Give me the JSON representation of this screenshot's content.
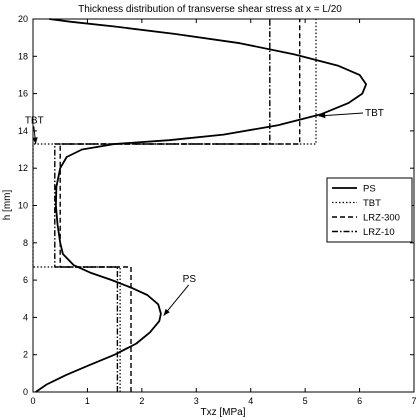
{
  "chart_data": {
    "type": "line",
    "title": "Thickness distribution of transverse shear stress at x = L/20",
    "xlabel": "Txz [MPa]",
    "ylabel": "h [mm]",
    "xlim": [
      0,
      7
    ],
    "ylim": [
      0,
      20
    ],
    "xticks": [
      0,
      1,
      2,
      3,
      4,
      5,
      6,
      7
    ],
    "yticks": [
      0,
      2,
      4,
      6,
      8,
      10,
      12,
      14,
      16,
      18,
      20
    ],
    "grid": false,
    "legend_position": "right-middle",
    "series": [
      {
        "name": "PS",
        "style": "solid",
        "width": 1.8,
        "points": [
          [
            0.05,
            0
          ],
          [
            0.25,
            0.4
          ],
          [
            0.6,
            0.9
          ],
          [
            1.0,
            1.4
          ],
          [
            1.5,
            2.0
          ],
          [
            1.9,
            2.6
          ],
          [
            2.15,
            3.2
          ],
          [
            2.32,
            3.8
          ],
          [
            2.35,
            4.2
          ],
          [
            2.3,
            4.7
          ],
          [
            2.1,
            5.2
          ],
          [
            1.8,
            5.6
          ],
          [
            1.45,
            6.0
          ],
          [
            1.05,
            6.4
          ],
          [
            0.75,
            6.8
          ],
          [
            0.55,
            7.4
          ],
          [
            0.5,
            8.0
          ],
          [
            0.45,
            9.0
          ],
          [
            0.42,
            10.0
          ],
          [
            0.43,
            11.0
          ],
          [
            0.5,
            12.0
          ],
          [
            0.62,
            12.6
          ],
          [
            0.9,
            13.0
          ],
          [
            1.5,
            13.3
          ],
          [
            2.5,
            13.5
          ],
          [
            3.5,
            13.8
          ],
          [
            4.5,
            14.3
          ],
          [
            5.3,
            14.9
          ],
          [
            5.8,
            15.5
          ],
          [
            6.05,
            16.0
          ],
          [
            6.12,
            16.5
          ],
          [
            6.0,
            17.0
          ],
          [
            5.6,
            17.5
          ],
          [
            4.8,
            18.1
          ],
          [
            3.8,
            18.7
          ],
          [
            2.6,
            19.2
          ],
          [
            1.5,
            19.6
          ],
          [
            0.7,
            19.85
          ],
          [
            0.3,
            20.0
          ]
        ]
      },
      {
        "name": "TBT",
        "style": "dotted",
        "width": 1.2,
        "points": [
          [
            1.6,
            0
          ],
          [
            1.6,
            6.7
          ],
          [
            0,
            6.7
          ],
          [
            0,
            13.3
          ],
          [
            5.2,
            13.3
          ],
          [
            5.2,
            20
          ]
        ]
      },
      {
        "name": "LRZ-300",
        "style": "dashed",
        "width": 1.4,
        "points": [
          [
            1.8,
            0
          ],
          [
            1.8,
            6.7
          ],
          [
            0.5,
            6.7
          ],
          [
            0.5,
            13.3
          ],
          [
            4.9,
            13.3
          ],
          [
            4.9,
            20
          ]
        ]
      },
      {
        "name": "LRZ-10",
        "style": "dashdot",
        "width": 1.4,
        "points": [
          [
            1.55,
            0
          ],
          [
            1.55,
            6.7
          ],
          [
            0.4,
            6.7
          ],
          [
            0.4,
            13.3
          ],
          [
            4.35,
            13.3
          ],
          [
            4.35,
            20
          ]
        ]
      }
    ],
    "annotations": [
      {
        "text": "TBT",
        "x": -0.15,
        "y": 14.4,
        "arrow_to": [
          0.05,
          13.3
        ]
      },
      {
        "text": "TBT",
        "x": 6.1,
        "y": 14.8,
        "arrow_to": [
          5.25,
          14.8
        ]
      },
      {
        "text": "PS",
        "x": 2.75,
        "y": 5.9,
        "arrow_to": [
          2.4,
          4.1
        ]
      }
    ]
  }
}
